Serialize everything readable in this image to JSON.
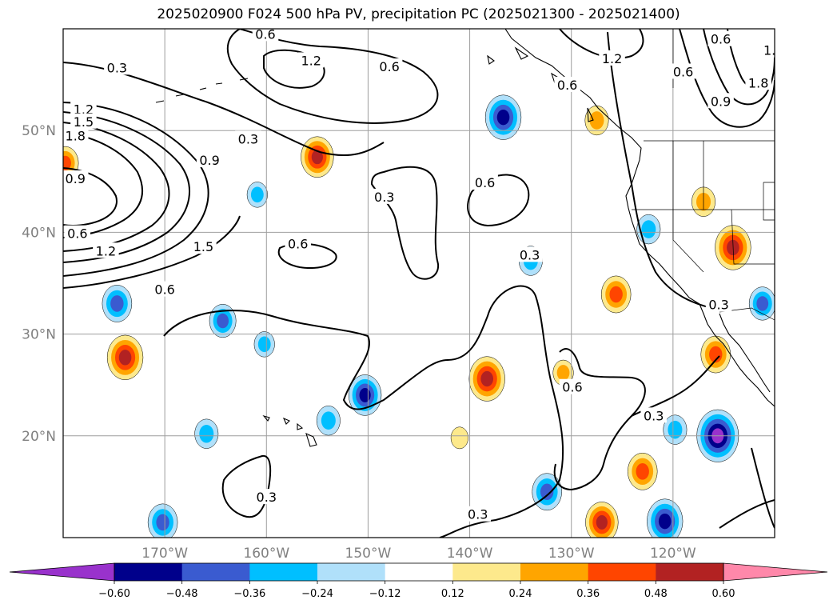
{
  "title": "2025020900 F024 500 hPa PV, precipitation PC (2025021300 - 2025021400)",
  "map": {
    "projection": "equirectangular",
    "lon_range": [
      -180,
      -110
    ],
    "lat_range": [
      10,
      60
    ],
    "gridlines": true,
    "lon_ticks": [
      {
        "lon": -170,
        "label": "170°W"
      },
      {
        "lon": -160,
        "label": "160°W"
      },
      {
        "lon": -150,
        "label": "150°W"
      },
      {
        "lon": -140,
        "label": "140°W"
      },
      {
        "lon": -130,
        "label": "130°W"
      },
      {
        "lon": -120,
        "label": "120°W"
      }
    ],
    "lat_ticks": [
      {
        "lat": 20,
        "label": "20°N"
      },
      {
        "lat": 30,
        "label": "30°N"
      },
      {
        "lat": 40,
        "label": "40°N"
      },
      {
        "lat": 50,
        "label": "50°N"
      }
    ]
  },
  "pv_contour_labels": [
    {
      "text": "0.3",
      "lon": -174.7,
      "lat": 56.2
    },
    {
      "text": "0.6",
      "lon": -160.1,
      "lat": 59.5
    },
    {
      "text": "1.2",
      "lon": -155.6,
      "lat": 56.9
    },
    {
      "text": "0.6",
      "lon": -147.9,
      "lat": 56.3
    },
    {
      "text": "1.2",
      "lon": -178.0,
      "lat": 52.1
    },
    {
      "text": "1.5",
      "lon": -178.0,
      "lat": 50.9
    },
    {
      "text": "1.8",
      "lon": -178.8,
      "lat": 49.5
    },
    {
      "text": "0.3",
      "lon": -161.8,
      "lat": 49.2
    },
    {
      "text": "0.9",
      "lon": -165.6,
      "lat": 47.1
    },
    {
      "text": "0.9",
      "lon": -178.8,
      "lat": 45.3
    },
    {
      "text": "0.6",
      "lon": -178.6,
      "lat": 39.9
    },
    {
      "text": "1.2",
      "lon": -175.8,
      "lat": 38.2
    },
    {
      "text": "1.5",
      "lon": -166.2,
      "lat": 38.6
    },
    {
      "text": "0.6",
      "lon": -156.9,
      "lat": 38.9
    },
    {
      "text": "0.6",
      "lon": -170.0,
      "lat": 34.4
    },
    {
      "text": "0.3",
      "lon": -148.4,
      "lat": 43.5
    },
    {
      "text": "0.6",
      "lon": -138.5,
      "lat": 44.9
    },
    {
      "text": "0.3",
      "lon": -134.1,
      "lat": 37.8
    },
    {
      "text": "1.2",
      "lon": -126.0,
      "lat": 57.1
    },
    {
      "text": "0.6",
      "lon": -130.4,
      "lat": 54.5
    },
    {
      "text": "0.6",
      "lon": -119.0,
      "lat": 55.8
    },
    {
      "text": "0.6",
      "lon": -115.3,
      "lat": 59.0
    },
    {
      "text": "0.9",
      "lon": -115.3,
      "lat": 52.9
    },
    {
      "text": "1.8",
      "lon": -111.6,
      "lat": 54.7
    },
    {
      "text": "1.",
      "lon": -110.5,
      "lat": 57.9
    },
    {
      "text": "0.3",
      "lon": -115.5,
      "lat": 32.9
    },
    {
      "text": "0.6",
      "lon": -129.9,
      "lat": 24.8
    },
    {
      "text": "0.3",
      "lon": -121.9,
      "lat": 22.0
    },
    {
      "text": "0.3",
      "lon": -160.0,
      "lat": 14.0
    },
    {
      "text": "0.3",
      "lon": -139.2,
      "lat": 12.3
    }
  ],
  "precip_anomalies": [
    {
      "sign": "negative",
      "intensity": 0.36,
      "lon": -174.7,
      "lat": 33.0
    },
    {
      "sign": "negative",
      "intensity": 0.3,
      "lon": -164.3,
      "lat": 31.3
    },
    {
      "sign": "negative",
      "intensity": 0.18,
      "lon": -160.2,
      "lat": 29.0
    },
    {
      "sign": "negative",
      "intensity": 0.42,
      "lon": -150.3,
      "lat": 24.0
    },
    {
      "sign": "negative",
      "intensity": 0.24,
      "lon": -153.9,
      "lat": 21.5
    },
    {
      "sign": "negative",
      "intensity": 0.24,
      "lon": -165.9,
      "lat": 20.2
    },
    {
      "sign": "negative",
      "intensity": 0.36,
      "lon": -170.2,
      "lat": 11.5
    },
    {
      "sign": "negative",
      "intensity": 0.48,
      "lon": -136.7,
      "lat": 51.3
    },
    {
      "sign": "negative",
      "intensity": 0.24,
      "lon": -122.4,
      "lat": 40.3
    },
    {
      "sign": "negative",
      "intensity": 0.24,
      "lon": -134.0,
      "lat": 37.2
    },
    {
      "sign": "negative",
      "intensity": 0.3,
      "lon": -111.2,
      "lat": 33.0
    },
    {
      "sign": "negative",
      "intensity": 0.6,
      "lon": -115.6,
      "lat": 20.0
    },
    {
      "sign": "negative",
      "intensity": 0.24,
      "lon": -119.8,
      "lat": 20.6
    },
    {
      "sign": "negative",
      "intensity": 0.36,
      "lon": -132.4,
      "lat": 14.5
    },
    {
      "sign": "negative",
      "intensity": 0.48,
      "lon": -120.8,
      "lat": 11.6
    },
    {
      "sign": "negative",
      "intensity": 0.18,
      "lon": -160.9,
      "lat": 43.7
    },
    {
      "sign": "positive",
      "intensity": 0.42,
      "lon": -155.0,
      "lat": 47.4
    },
    {
      "sign": "positive",
      "intensity": 0.48,
      "lon": -173.9,
      "lat": 27.7
    },
    {
      "sign": "positive",
      "intensity": 0.3,
      "lon": -179.8,
      "lat": 46.8
    },
    {
      "sign": "positive",
      "intensity": 0.48,
      "lon": -138.3,
      "lat": 25.6
    },
    {
      "sign": "positive",
      "intensity": 0.36,
      "lon": -125.6,
      "lat": 33.9
    },
    {
      "sign": "positive",
      "intensity": 0.48,
      "lon": -114.1,
      "lat": 38.5
    },
    {
      "sign": "positive",
      "intensity": 0.24,
      "lon": -117.0,
      "lat": 43.0
    },
    {
      "sign": "positive",
      "intensity": 0.36,
      "lon": -115.8,
      "lat": 28.0
    },
    {
      "sign": "positive",
      "intensity": 0.36,
      "lon": -123.0,
      "lat": 16.5
    },
    {
      "sign": "positive",
      "intensity": 0.42,
      "lon": -127.0,
      "lat": 11.5
    },
    {
      "sign": "positive",
      "intensity": 0.12,
      "lon": -141.0,
      "lat": 19.8
    },
    {
      "sign": "positive",
      "intensity": 0.18,
      "lon": -130.8,
      "lat": 26.2
    },
    {
      "sign": "positive",
      "intensity": 0.24,
      "lon": -127.5,
      "lat": 51.0
    }
  ],
  "colorbar": {
    "levels": [
      -0.6,
      -0.48,
      -0.36,
      -0.24,
      -0.12,
      0.12,
      0.24,
      0.36,
      0.48,
      0.6
    ],
    "tick_labels": [
      "−0.60",
      "−0.48",
      "−0.36",
      "−0.24",
      "−0.12",
      "0.12",
      "0.24",
      "0.36",
      "0.48",
      "0.60"
    ],
    "colors": [
      "#9932cc",
      "#00008b",
      "#3a5bd0",
      "#00bfff",
      "#b0e0fa",
      "#ffffff",
      "#fde98c",
      "#ffa500",
      "#ff4500",
      "#b22222",
      "#ff88aa"
    ],
    "extend": "both"
  }
}
